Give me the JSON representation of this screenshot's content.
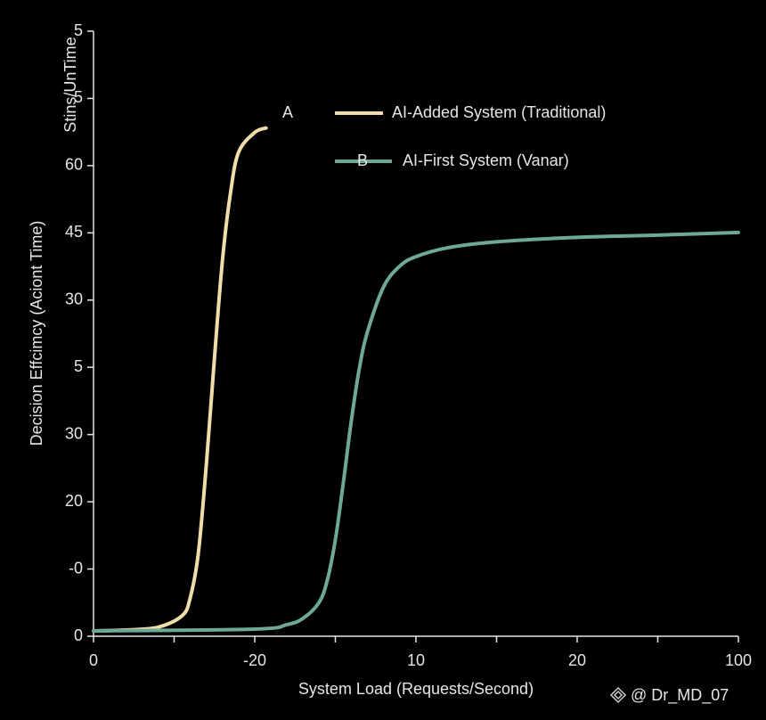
{
  "chart_data": {
    "type": "line",
    "ylabel": "Decision Effcimcy (Aciont Time)",
    "ylabel2": "Stins/UnTime",
    "xlabel": "System Load (Requests/Second)",
    "watermark": "@ Dr_MD_07",
    "xlim": [
      0,
      40
    ],
    "ylim": [
      0,
      135
    ],
    "xticks": [
      0,
      {
        "value": 10,
        "label": "-20"
      },
      {
        "value": 20,
        "label": "10"
      },
      {
        "value": 30,
        "label": "20"
      },
      {
        "value": 40,
        "label": "100"
      }
    ],
    "xminor_ticks": [
      5,
      15,
      25,
      35
    ],
    "yticks": [
      0,
      {
        "value": 15,
        "label": "-0"
      },
      {
        "value": 30,
        "label": "20"
      },
      {
        "value": 45,
        "label": "30"
      },
      {
        "value": 60,
        "label": "5"
      },
      {
        "value": 75,
        "label": "30"
      },
      {
        "value": 90,
        "label": "45"
      },
      {
        "value": 105,
        "label": "60"
      },
      {
        "value": 120,
        "label": "5"
      },
      {
        "value": 135,
        "label": "5"
      }
    ],
    "series": [
      {
        "name": "AI-Added System (Traditional)",
        "marker_label": "A",
        "color": "#f0deaa",
        "x": [
          0,
          2,
          4,
          5.5,
          6,
          6.5,
          7,
          7.5,
          8,
          8.5,
          9,
          10,
          10.7
        ],
        "values": [
          1.2,
          1.4,
          2,
          4.6,
          8.6,
          18.5,
          38.4,
          62,
          84,
          99,
          108,
          112.4,
          113.4
        ]
      },
      {
        "name": "AI-First System (Vanar)",
        "marker_label": "B",
        "color": "#6fa898",
        "x": [
          0,
          10,
          12,
          13,
          14,
          14.5,
          15,
          15.5,
          16,
          16.5,
          17,
          18,
          19,
          20,
          22,
          25,
          30,
          35,
          40
        ],
        "values": [
          1.2,
          1.6,
          2.6,
          4,
          7.6,
          12.5,
          21.5,
          34.4,
          48.3,
          60,
          68,
          78,
          82.6,
          84.7,
          86.7,
          88,
          89,
          89.5,
          90.1
        ]
      }
    ]
  }
}
